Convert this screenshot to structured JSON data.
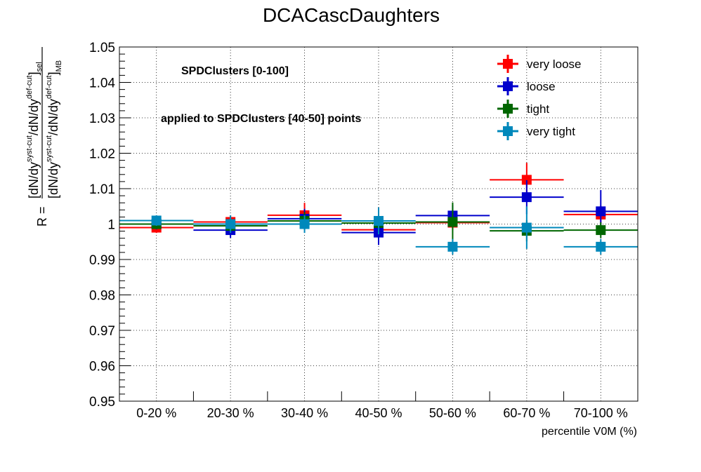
{
  "chart_data": {
    "type": "scatter",
    "title": "DCACascDaughters",
    "xlabel": "percentile V0M (%)",
    "ylabel": {
      "prefix": "R = ",
      "numerator": [
        "[dN/dy",
        "syst-cut",
        "/dN/dy",
        "def-cut",
        "]",
        "sel"
      ],
      "denominator": [
        "[dN/dy",
        "syst-cut",
        "/dN/dy",
        "def-cut",
        "]",
        "MB"
      ]
    },
    "categories": [
      "0-20 %",
      "20-30 %",
      "30-40 %",
      "40-50 %",
      "50-60 %",
      "60-70 %",
      "70-100 %"
    ],
    "ylim": [
      0.95,
      1.05
    ],
    "yticks": [
      "0.95",
      "0.96",
      "0.97",
      "0.98",
      "0.99",
      "1",
      "1.01",
      "1.02",
      "1.03",
      "1.04",
      "1.05"
    ],
    "grid": true,
    "legend_position": "top-right",
    "annotations": [
      "SPDClusters [0-100]",
      "applied to SPDClusters [40-50] points"
    ],
    "series": [
      {
        "name": "very loose",
        "color": "#ff0000",
        "values": [
          0.999,
          1.0006,
          1.0025,
          0.9984,
          1.0004,
          1.0125,
          1.0027
        ],
        "errors": [
          0.0015,
          0.0018,
          0.0035,
          0.0015,
          0.002,
          0.0048,
          0.0025
        ]
      },
      {
        "name": "loose",
        "color": "#0000cc",
        "values": [
          1.0,
          0.9983,
          1.0015,
          0.9976,
          1.0024,
          1.0076,
          1.0036
        ],
        "errors": [
          0.0015,
          0.0022,
          0.0028,
          0.0035,
          0.003,
          0.0048,
          0.006
        ]
      },
      {
        "name": "tight",
        "color": "#006600",
        "values": [
          1.0,
          0.9995,
          1.0009,
          1.0003,
          1.0006,
          0.9981,
          0.9983
        ],
        "errors": [
          0.0012,
          0.0015,
          0.0025,
          0.002,
          0.0055,
          0.003,
          0.0022
        ]
      },
      {
        "name": "very tight",
        "color": "#0088bb",
        "values": [
          1.001,
          1.0,
          1.0,
          1.0009,
          0.9936,
          0.999,
          0.9936
        ],
        "errors": [
          0.0015,
          0.0025,
          0.0025,
          0.0038,
          0.0022,
          0.006,
          0.0022
        ]
      }
    ]
  }
}
